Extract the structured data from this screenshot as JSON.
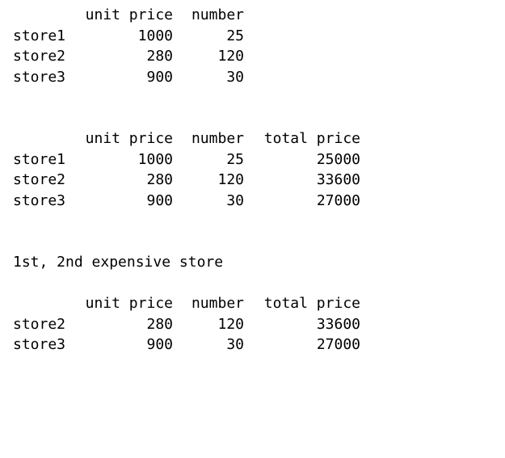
{
  "table1": {
    "headers": [
      "unit price",
      "number"
    ],
    "rows": [
      {
        "index": "store1",
        "unit_price": "1000",
        "number": "25"
      },
      {
        "index": "store2",
        "unit_price": "280",
        "number": "120"
      },
      {
        "index": "store3",
        "unit_price": "900",
        "number": "30"
      }
    ]
  },
  "table2": {
    "headers": [
      "unit price",
      "number",
      "total price"
    ],
    "rows": [
      {
        "index": "store1",
        "unit_price": "1000",
        "number": "25",
        "total_price": "25000"
      },
      {
        "index": "store2",
        "unit_price": "280",
        "number": "120",
        "total_price": "33600"
      },
      {
        "index": "store3",
        "unit_price": "900",
        "number": "30",
        "total_price": "27000"
      }
    ]
  },
  "caption": "1st, 2nd expensive store",
  "table3": {
    "headers": [
      "unit price",
      "number",
      "total price"
    ],
    "rows": [
      {
        "index": "store2",
        "unit_price": "280",
        "number": "120",
        "total_price": "33600"
      },
      {
        "index": "store3",
        "unit_price": "900",
        "number": "30",
        "total_price": "27000"
      }
    ]
  }
}
